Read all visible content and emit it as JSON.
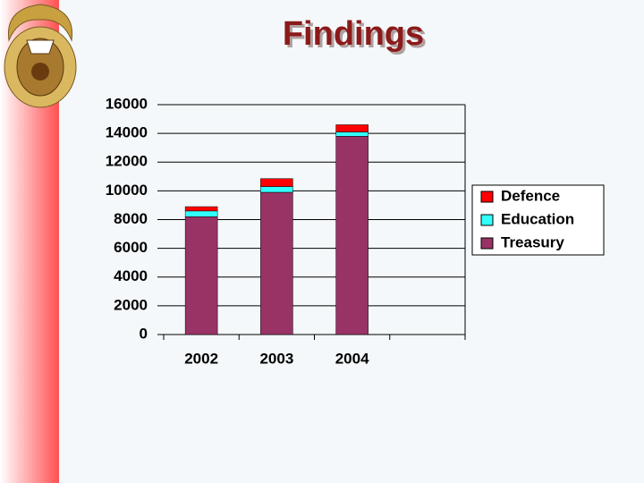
{
  "chart_data": {
    "type": "stacked_bar",
    "title": "Findings",
    "categories": [
      "2002",
      "2003",
      "2004",
      null
    ],
    "series": [
      {
        "name": "Treasury",
        "color": "#993366",
        "values": [
          8200,
          9900,
          13800,
          null
        ]
      },
      {
        "name": "Education",
        "color": "#33ffff",
        "values": [
          400,
          400,
          300,
          null
        ]
      },
      {
        "name": "Defence",
        "color": "#ff0000",
        "values": [
          300,
          550,
          500,
          null
        ]
      }
    ],
    "ylim": [
      0,
      16000
    ],
    "yticks": [
      0,
      2000,
      4000,
      6000,
      8000,
      10000,
      12000,
      14000,
      16000
    ],
    "grid": true
  }
}
